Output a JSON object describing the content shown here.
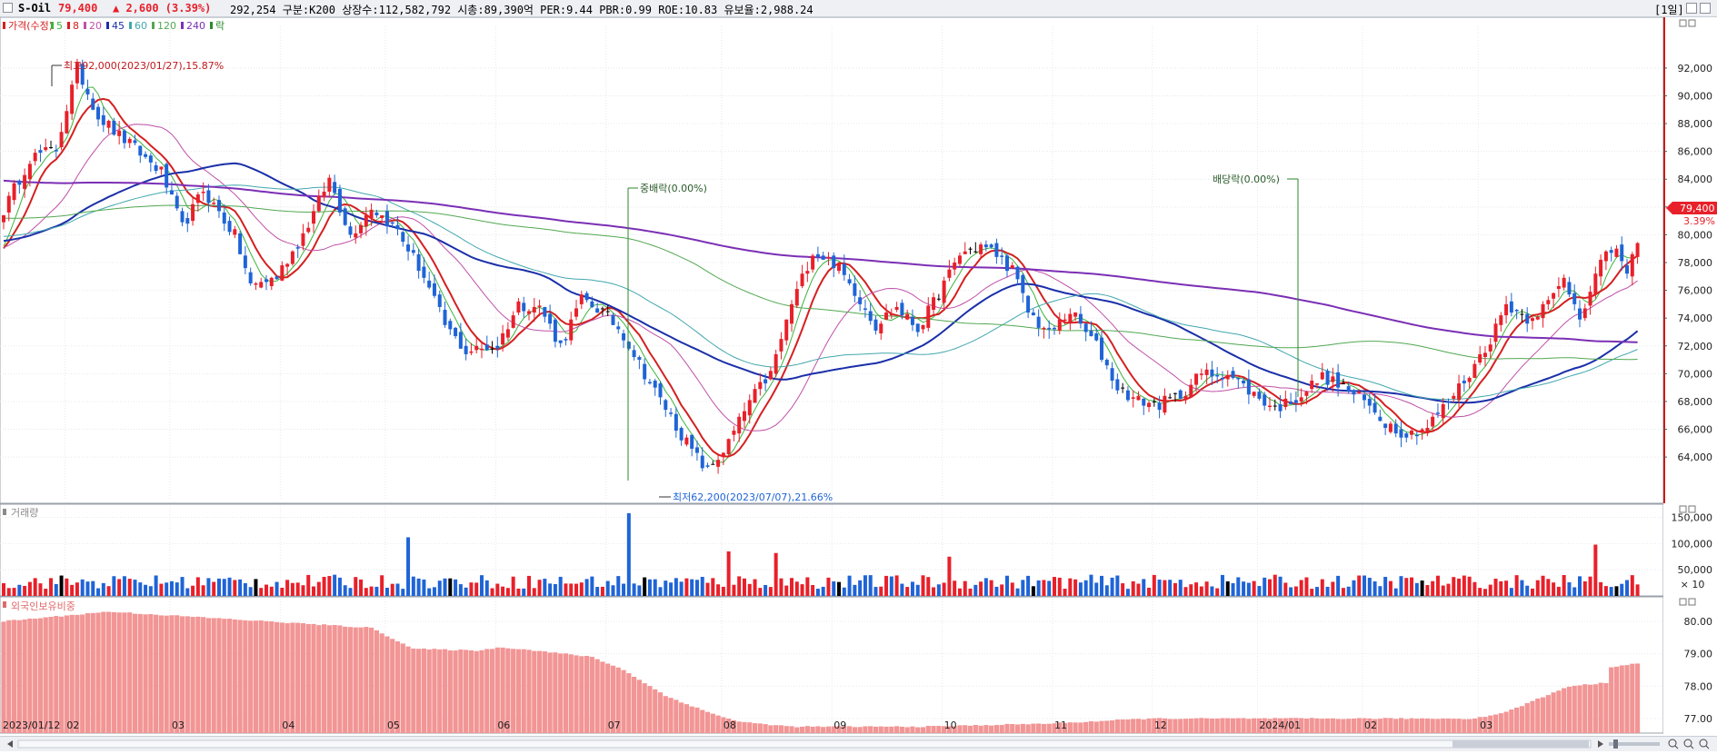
{
  "header": {
    "name": "S-Oil",
    "price": "79,400",
    "change": "▲ 2,600 (3.39%)",
    "info": "292,254  구분:K200 상장수:112,582,792 시총:89,390억 PER:9.44 PBR:0.99 ROE:10.83 유보율:2,988.24",
    "period": "[1일]"
  },
  "colors": {
    "up": "#e8202a",
    "down": "#1f64d6",
    "flat": "#000000",
    "ma5": "#3bb33b",
    "ma8": "#d42020",
    "ma20": "#c050a8",
    "ma45": "#1a2fa8",
    "ma60": "#43a7ad",
    "ma120": "#52a852",
    "ma240": "#7b2fb5",
    "foreign_bar": "#f29595"
  },
  "price_panel": {
    "legend": [
      {
        "label": "가격(수정)",
        "color": "#d42020"
      },
      {
        "label": "5",
        "color": "#3bb33b"
      },
      {
        "label": "8",
        "color": "#d42020"
      },
      {
        "label": "20",
        "color": "#c050a8"
      },
      {
        "label": "45",
        "color": "#1a2fa8"
      },
      {
        "label": "60",
        "color": "#43a7ad"
      },
      {
        "label": "120",
        "color": "#52a852"
      },
      {
        "label": "240",
        "color": "#7b2fb5"
      },
      {
        "label": "락",
        "color": "#2a8a2a"
      }
    ],
    "annotations": {
      "high": "최고92,000(2023/01/27),15.87%",
      "low": "최저62,200(2023/07/07),21.66%",
      "split": "중배락(0.00%)",
      "dividend": "배당락(0.00%)"
    },
    "last_price_label": "79,400",
    "last_change_label": "3.39%"
  },
  "volume_panel": {
    "legend": "거래량",
    "unit_label": "× 10"
  },
  "foreign_panel": {
    "legend": "외국인보유비중"
  },
  "chart_data": [
    {
      "type": "candlestick",
      "title": "S-Oil",
      "y_ticks": [
        "64,000",
        "66,000",
        "68,000",
        "70,000",
        "72,000",
        "74,000",
        "76,000",
        "78,000",
        "80,000",
        "82,000",
        "84,000",
        "86,000",
        "88,000",
        "90,000",
        "92,000"
      ],
      "ylim": [
        61000,
        95000
      ],
      "x_labels": [
        "2023/01/12",
        "02",
        "03",
        "04",
        "05",
        "06",
        "07",
        "08",
        "09",
        "10",
        "11",
        "12",
        "2024/01",
        "02",
        "03"
      ],
      "close_path_keypoints": [
        [
          0,
          81800
        ],
        [
          5,
          85500
        ],
        [
          10,
          86200
        ],
        [
          14,
          92000
        ],
        [
          18,
          88500
        ],
        [
          24,
          86500
        ],
        [
          30,
          84500
        ],
        [
          34,
          80500
        ],
        [
          38,
          83200
        ],
        [
          44,
          80000
        ],
        [
          47,
          76300
        ],
        [
          52,
          77000
        ],
        [
          57,
          80000
        ],
        [
          62,
          84000
        ],
        [
          66,
          80000
        ],
        [
          70,
          82000
        ],
        [
          75,
          80300
        ],
        [
          80,
          77000
        ],
        [
          84,
          73500
        ],
        [
          88,
          71600
        ],
        [
          94,
          72000
        ],
        [
          98,
          75000
        ],
        [
          102,
          74800
        ],
        [
          106,
          72000
        ],
        [
          110,
          75300
        ],
        [
          114,
          74500
        ],
        [
          118,
          72800
        ],
        [
          122,
          70000
        ],
        [
          126,
          67500
        ],
        [
          130,
          65000
        ],
        [
          134,
          63000
        ],
        [
          138,
          65000
        ],
        [
          142,
          68000
        ],
        [
          146,
          70000
        ],
        [
          150,
          75000
        ],
        [
          154,
          78800
        ],
        [
          158,
          78000
        ],
        [
          162,
          76000
        ],
        [
          166,
          73500
        ],
        [
          170,
          74800
        ],
        [
          174,
          73200
        ],
        [
          178,
          75800
        ],
        [
          182,
          78600
        ],
        [
          186,
          79200
        ],
        [
          189,
          78600
        ],
        [
          192,
          77500
        ],
        [
          195,
          74500
        ],
        [
          199,
          72800
        ],
        [
          203,
          74500
        ],
        [
          208,
          72000
        ],
        [
          212,
          69000
        ],
        [
          216,
          68000
        ],
        [
          220,
          67800
        ],
        [
          224,
          68500
        ],
        [
          228,
          70000
        ],
        [
          233,
          70000
        ],
        [
          238,
          68500
        ],
        [
          242,
          67500
        ],
        [
          247,
          68500
        ],
        [
          251,
          69800
        ],
        [
          255,
          69000
        ],
        [
          259,
          68000
        ],
        [
          263,
          66500
        ],
        [
          267,
          65600
        ],
        [
          271,
          66200
        ],
        [
          275,
          68000
        ],
        [
          279,
          70000
        ],
        [
          283,
          72500
        ],
        [
          286,
          75000
        ],
        [
          290,
          74000
        ],
        [
          294,
          75000
        ],
        [
          297,
          76800
        ],
        [
          300,
          74200
        ],
        [
          304,
          78000
        ],
        [
          307,
          79200
        ],
        [
          309,
          77000
        ],
        [
          311,
          79400
        ]
      ],
      "candle_count": 312,
      "last": {
        "date": "2024/03",
        "close": 79400,
        "change": 2600,
        "change_pct": 3.39
      },
      "high": {
        "value": 92000,
        "date": "2023/01/27"
      },
      "low": {
        "value": 62200,
        "date": "2023/07/07"
      },
      "moving_averages": [
        5,
        8,
        20,
        45,
        60,
        120,
        240
      ]
    },
    {
      "type": "bar",
      "title": "거래량",
      "y_ticks": [
        "50,000",
        "100,000",
        "150,000"
      ],
      "ylim": [
        0,
        170000
      ],
      "typical_volume": 30000,
      "spikes": [
        {
          "index": 77,
          "value": 112000
        },
        {
          "index": 119,
          "value": 158000
        },
        {
          "index": 138,
          "value": 85000
        },
        {
          "index": 147,
          "value": 82000
        },
        {
          "index": 180,
          "value": 75000
        },
        {
          "index": 303,
          "value": 98000
        }
      ]
    },
    {
      "type": "bar",
      "title": "외국인보유비중",
      "y_ticks": [
        "77.00",
        "78.00",
        "79.00",
        "80.00"
      ],
      "ylim": [
        76.55,
        80.7
      ],
      "keypoints": [
        [
          0,
          80.0
        ],
        [
          20,
          80.3
        ],
        [
          40,
          80.1
        ],
        [
          70,
          79.8
        ],
        [
          78,
          79.15
        ],
        [
          90,
          79.1
        ],
        [
          95,
          79.2
        ],
        [
          100,
          79.12
        ],
        [
          112,
          78.9
        ],
        [
          118,
          78.5
        ],
        [
          126,
          77.7
        ],
        [
          134,
          77.2
        ],
        [
          140,
          76.9
        ],
        [
          150,
          76.75
        ],
        [
          175,
          76.75
        ],
        [
          200,
          76.85
        ],
        [
          218,
          77.0
        ],
        [
          260,
          77.0
        ],
        [
          280,
          77.0
        ],
        [
          286,
          77.2
        ],
        [
          292,
          77.6
        ],
        [
          298,
          78.0
        ],
        [
          305,
          78.1
        ],
        [
          306,
          78.6
        ],
        [
          311,
          78.7
        ]
      ]
    }
  ]
}
